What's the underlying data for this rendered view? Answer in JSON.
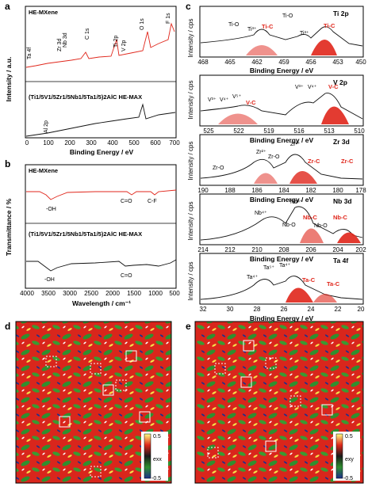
{
  "panel_labels": {
    "a": "a",
    "b": "b",
    "c": "c",
    "d": "d",
    "e": "e"
  },
  "xps_survey": {
    "top_label": "HE-MXene",
    "bottom_label": "(Ti1/5V1/5Zr1/5Nb1/5Ta1/5)2AlC HE-MAX",
    "peaks_top": [
      "Ta 4f",
      "Zr 3d",
      "Nb 3d",
      "C 1s",
      "Ti 2p",
      "V 2p",
      "O 1s",
      "F 1s"
    ],
    "peak_bottom": "Al 2p",
    "xlabel": "Binding Energy / eV",
    "ylabel": "Intensity / a.u.",
    "xticks": [
      "0",
      "100",
      "200",
      "300",
      "400",
      "500",
      "600",
      "700"
    ]
  },
  "ftir": {
    "top_label": "HE-MXene",
    "bottom_label": "(Ti1/5V1/5Zr1/5Nb1/5Ta1/5)2AlC HE-MAX",
    "bands_top": [
      "-OH",
      "C=O",
      "C-F"
    ],
    "bands_bottom": [
      "-OH",
      "C=O"
    ],
    "xlabel": "Wavelength / cm⁻¹",
    "ylabel": "Transmittance / %",
    "xticks": [
      "4000",
      "3500",
      "3000",
      "2500",
      "2000",
      "1500",
      "1000",
      "500"
    ]
  },
  "hr_xps": {
    "ylabel": "Intensity / cps",
    "xlabel": "Binding Energy / eV",
    "panels": [
      {
        "name": "Ti 2p",
        "xticks": [
          "468",
          "465",
          "462",
          "459",
          "456",
          "453",
          "450"
        ],
        "labels": [
          "Ti-O",
          "Ti³⁺",
          "Ti-O",
          "Ti-C",
          "Ti³⁺",
          "Ti-C"
        ]
      },
      {
        "name": "V 2p",
        "xticks": [
          "525",
          "522",
          "519",
          "516",
          "513",
          "510"
        ],
        "labels": [
          "V³⁺",
          "V⁴⁺",
          "V⁵⁺",
          "V-C",
          "V³⁺",
          "V⁴⁺",
          "V-C"
        ]
      },
      {
        "name": "Zr 3d",
        "xticks": [
          "190",
          "188",
          "186",
          "184",
          "182",
          "180",
          "178"
        ],
        "labels": [
          "Zr-O",
          "Zr²⁺",
          "Zr-O",
          "Zr²⁺",
          "Zr-C",
          "Zr-C"
        ]
      },
      {
        "name": "Nb 3d",
        "xticks": [
          "214",
          "212",
          "210",
          "208",
          "206",
          "204",
          "202"
        ],
        "labels": [
          "Nb⁴⁺",
          "Nb⁴⁺",
          "Nb-C",
          "Nb-O",
          "Nb-O",
          "Nb-C"
        ]
      },
      {
        "name": "Ta 4f",
        "xticks": [
          "32",
          "30",
          "28",
          "26",
          "24",
          "22",
          "20"
        ],
        "labels": [
          "Ta⁴⁺",
          "Ta⁵⁺",
          "Ta⁴⁺",
          "Ta-C",
          "Ta-C"
        ]
      }
    ]
  },
  "strain_maps": [
    {
      "colorbar_max": "0.5",
      "colorbar_min": "-0.5",
      "label": "exx"
    },
    {
      "colorbar_max": "0.5",
      "colorbar_min": "-0.5",
      "label": "exy"
    }
  ],
  "colors": {
    "red": "#e0261b",
    "black": "#111111",
    "green": "#2f8f2f",
    "map_red": "#d9261c"
  }
}
